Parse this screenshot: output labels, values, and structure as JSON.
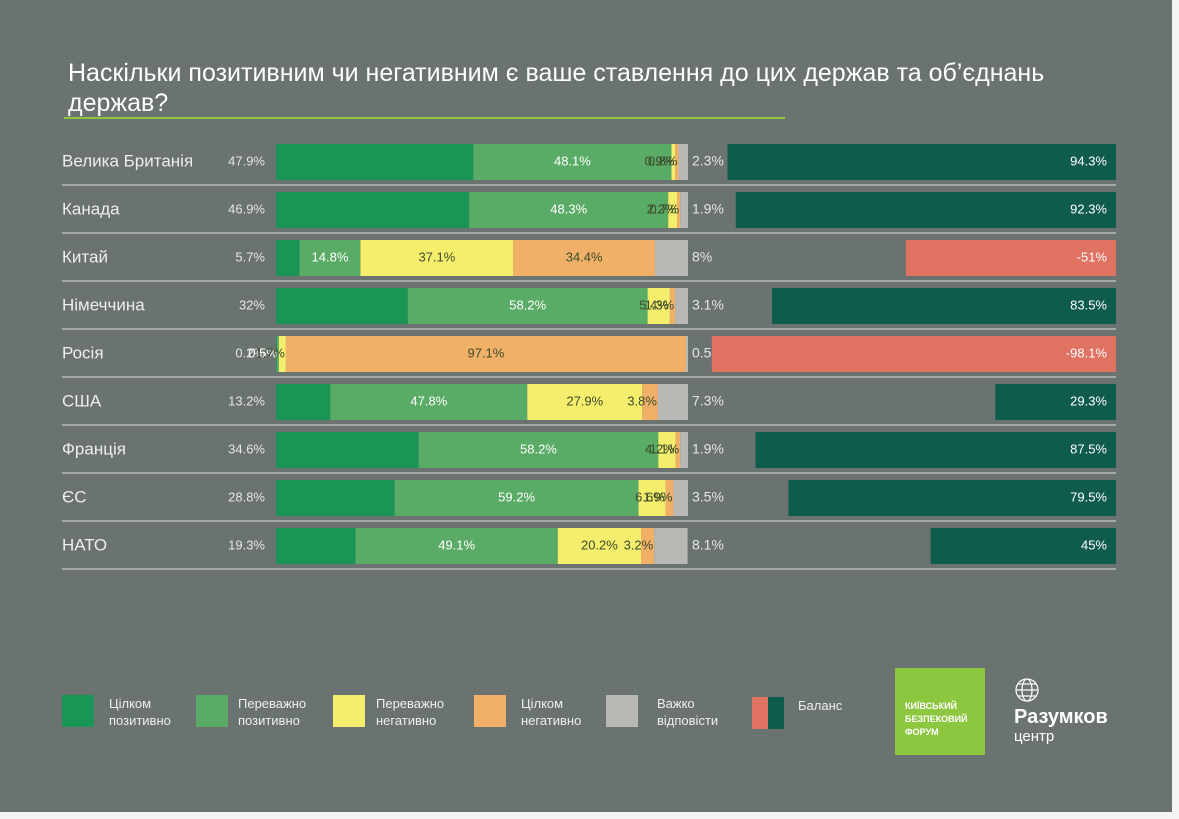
{
  "chart_data": {
    "type": "bar",
    "orientation": "horizontal",
    "stacked": true,
    "title": "Наскільки позитивним чи негативним є ваше ставлення до цих держав та об’єднань держав?",
    "categories": [
      "Велика Британія",
      "Канада",
      "Китай",
      "Німеччина",
      "Росія",
      "США",
      "Франція",
      "ЄС",
      "НАТО"
    ],
    "xlim": [
      0,
      100
    ],
    "series": [
      {
        "name": "Цілком позитивно",
        "color": "#1b9556",
        "values": [
          47.9,
          46.9,
          5.7,
          32,
          0.2,
          13.2,
          34.6,
          28.8,
          19.3
        ],
        "value_labels": [
          "47.9%",
          "46.9%",
          "5.7%",
          "32%",
          "0.2%",
          "13.2%",
          "34.6%",
          "28.8%",
          "19.3%"
        ]
      },
      {
        "name": "Переважно позитивно",
        "color": "#5aab66",
        "values": [
          48.1,
          48.3,
          14.8,
          58.2,
          0.5,
          47.8,
          58.2,
          59.2,
          49.1
        ],
        "value_labels": [
          "48.1%",
          "48.3%",
          "14.8%",
          "58.2%",
          "0.5%",
          "47.8%",
          "58.2%",
          "59.2%",
          "49.1%"
        ]
      },
      {
        "name": "Переважно негативно",
        "color": "#f5ee6c",
        "values": [
          0.9,
          2.2,
          37.1,
          5.4,
          1.7,
          27.9,
          4.2,
          6.6,
          20.2
        ],
        "value_labels": [
          "0.9%",
          "2.2%",
          "37.1%",
          "5.4%",
          "1.7%",
          "27.9%",
          "4.2%",
          "6.6%",
          "20.2%"
        ]
      },
      {
        "name": "Цілком негативно",
        "color": "#f0b068",
        "values": [
          0.8,
          0.7,
          34.4,
          1.3,
          97.1,
          3.8,
          1.1,
          1.9,
          3.2
        ],
        "value_labels": [
          "0.8%",
          "0.7%",
          "34.4%",
          "1.3%",
          "97.1%",
          "3.8%",
          "1.1%",
          "1.9%",
          "3.2%"
        ]
      },
      {
        "name": "Важко відповісти",
        "color": "#b8b8b5",
        "values": [
          2.3,
          1.9,
          8,
          3.1,
          0.5,
          7.3,
          1.9,
          3.5,
          8.1
        ],
        "value_labels": [
          "2.3%",
          "1.9%",
          "8%",
          "3.1%",
          "0.5%",
          "7.3%",
          "1.9%",
          "3.5%",
          "8.1%"
        ]
      }
    ],
    "balance": {
      "name": "Баланс",
      "color_negative": "#e07262",
      "color_positive": "#0f5c4c",
      "values": [
        94.3,
        92.3,
        -51,
        83.5,
        -98.1,
        29.3,
        87.5,
        79.5,
        45
      ],
      "value_labels": [
        "94.3%",
        "92.3%",
        "-51%",
        "83.5%",
        "-98.1%",
        "29.3%",
        "87.5%",
        "79.5%",
        "45%"
      ]
    },
    "logos": {
      "forum": "КИЇВСЬКИЙ БЕЗПЕКОВИЙ ФОРУМ",
      "center_name": "Разумков",
      "center_sub": "центр"
    }
  }
}
